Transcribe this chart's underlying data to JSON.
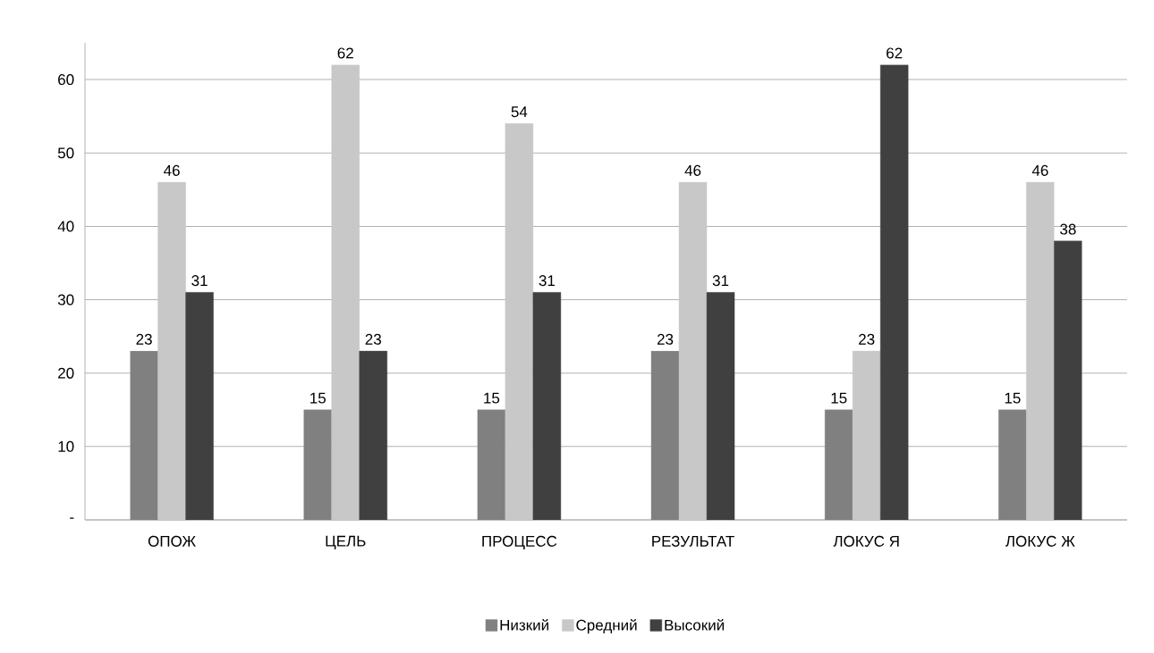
{
  "chart_data": {
    "type": "bar",
    "categories": [
      "ОПОЖ",
      "ЦЕЛЬ",
      "ПРОЦЕСС",
      "РЕЗУЛЬТАТ",
      "ЛОКУС Я",
      "ЛОКУС Ж"
    ],
    "series": [
      {
        "name": "Низкий",
        "color": "#808080",
        "values": [
          23,
          15,
          15,
          23,
          15,
          15
        ]
      },
      {
        "name": "Средний",
        "color": "#c8c8c8",
        "values": [
          46,
          62,
          54,
          46,
          23,
          46
        ]
      },
      {
        "name": "Высокий",
        "color": "#404040",
        "values": [
          31,
          23,
          31,
          31,
          62,
          38
        ]
      }
    ],
    "ylim": [
      0,
      65
    ],
    "yticks": [
      {
        "value": 0,
        "label": "-"
      },
      10,
      20,
      30,
      40,
      50,
      60
    ],
    "grid": "y",
    "legend": "bottom",
    "data_labels": true
  }
}
